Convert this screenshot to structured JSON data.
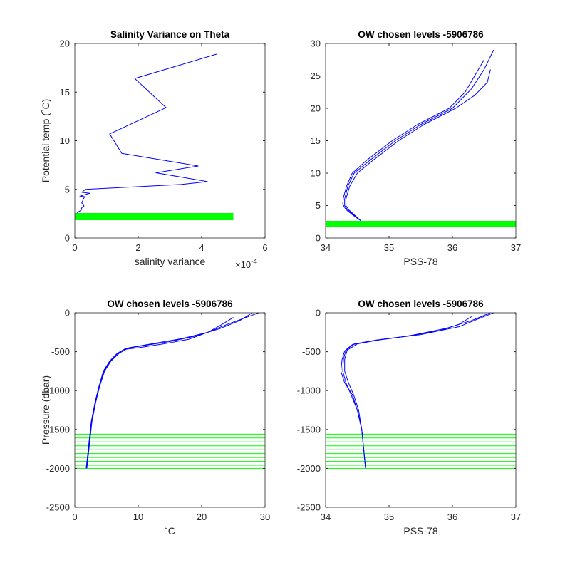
{
  "chart_data": [
    {
      "type": "line",
      "title": "Salinity Variance on Theta",
      "xlabel": "salinity variance",
      "ylabel": "Potential temp (˚C)",
      "x_exponent": {
        "base": "×10",
        "exponent": "-4"
      },
      "xlim": [
        0,
        6
      ],
      "xticks": [
        0,
        2,
        4,
        6
      ],
      "ylim": [
        0,
        20
      ],
      "yticks": [
        0,
        5,
        10,
        15,
        20
      ],
      "series": [
        {
          "color": "#0000ff",
          "x": [
            4.47,
            1.89,
            2.88,
            1.1,
            1.48,
            3.89,
            2.56,
            4.18,
            3.35,
            0.34,
            0.22,
            0.47,
            0.16,
            0.31,
            0.27,
            0.22,
            0.29,
            0.22,
            0.2,
            0.07
          ],
          "values": [
            18.9,
            16.4,
            13.4,
            10.7,
            8.7,
            7.4,
            6.7,
            5.8,
            5.5,
            5.0,
            4.7,
            4.6,
            4.3,
            4.25,
            4.0,
            3.6,
            3.3,
            3.1,
            2.85,
            2.6
          ]
        },
        {
          "color": "#00ff00",
          "linewidth": 10,
          "x": [
            0,
            5
          ],
          "values": [
            2.2,
            2.2
          ]
        }
      ]
    },
    {
      "type": "line",
      "title": "OW chosen levels -5906786",
      "xlabel": "PSS-78",
      "xlim": [
        34,
        37
      ],
      "xticks": [
        34,
        35,
        36,
        37
      ],
      "ylim": [
        0,
        30
      ],
      "yticks": [
        0,
        5,
        10,
        15,
        20,
        25,
        30
      ],
      "series": [
        {
          "color": "#0000ff",
          "x": [
            34.55,
            34.45,
            34.35,
            34.3,
            34.3,
            34.35,
            34.45,
            34.7,
            35.1,
            35.5,
            36.0,
            36.3,
            36.5,
            36.65
          ],
          "values": [
            2.7,
            3.5,
            4.3,
            5,
            6,
            8,
            10,
            12,
            15,
            17.5,
            20,
            23,
            26,
            29
          ]
        },
        {
          "color": "#0000ff",
          "x": [
            34.55,
            34.42,
            34.32,
            34.27,
            34.28,
            34.33,
            34.42,
            34.65,
            35.05,
            35.45,
            35.95,
            36.2,
            36.35,
            36.5
          ],
          "values": [
            2.7,
            3.6,
            4.4,
            5.2,
            6.2,
            8,
            10,
            12,
            15,
            17.5,
            20,
            22.5,
            25,
            27.5
          ]
        },
        {
          "color": "#0000ff",
          "x": [
            34.55,
            34.46,
            34.37,
            34.32,
            34.32,
            34.38,
            34.5,
            34.75,
            35.15,
            35.55,
            36.05,
            36.35,
            36.55,
            36.6
          ],
          "values": [
            2.7,
            3.5,
            4.3,
            5,
            6,
            8,
            10,
            12,
            15,
            17.5,
            20,
            22,
            24,
            26
          ]
        },
        {
          "color": "#00ff00",
          "linewidth": 8,
          "x": [
            34,
            37
          ],
          "values": [
            2.2,
            2.2
          ]
        }
      ]
    },
    {
      "type": "line",
      "title": "OW chosen levels -5906786",
      "xlabel": "˚C",
      "ylabel": "Pressure (dbar)",
      "xlim": [
        0,
        30
      ],
      "xticks": [
        0,
        10,
        20,
        30
      ],
      "ylim": [
        -2500,
        0
      ],
      "yticks": [
        -2500,
        -2000,
        -1500,
        -1000,
        -500,
        0
      ],
      "series": [
        {
          "color": "#00ff00",
          "x": [
            0,
            30
          ],
          "values": [
            -1560,
            -1560
          ]
        },
        {
          "color": "#00ff00",
          "x": [
            0,
            30
          ],
          "values": [
            -1610,
            -1610
          ]
        },
        {
          "color": "#00ff00",
          "x": [
            0,
            30
          ],
          "values": [
            -1660,
            -1660
          ]
        },
        {
          "color": "#00ff00",
          "x": [
            0,
            30
          ],
          "values": [
            -1710,
            -1710
          ]
        },
        {
          "color": "#00ff00",
          "x": [
            0,
            30
          ],
          "values": [
            -1760,
            -1760
          ]
        },
        {
          "color": "#00ff00",
          "x": [
            0,
            30
          ],
          "values": [
            -1810,
            -1810
          ]
        },
        {
          "color": "#00ff00",
          "x": [
            0,
            30
          ],
          "values": [
            -1860,
            -1860
          ]
        },
        {
          "color": "#00ff00",
          "x": [
            0,
            30
          ],
          "values": [
            -1910,
            -1910
          ]
        },
        {
          "color": "#00ff00",
          "x": [
            0,
            30
          ],
          "values": [
            -1960,
            -1960
          ]
        },
        {
          "color": "#00ff00",
          "x": [
            0,
            30
          ],
          "values": [
            -2000,
            -2000
          ]
        },
        {
          "color": "#0000ff",
          "x": [
            1.8,
            2.2,
            2.6,
            3.2,
            3.8,
            4.6,
            5.6,
            6.8,
            8,
            11,
            15,
            19,
            23,
            26,
            28
          ],
          "values": [
            -2000,
            -1700,
            -1400,
            -1150,
            -950,
            -750,
            -620,
            -520,
            -460,
            -420,
            -370,
            -300,
            -200,
            -100,
            0
          ]
        },
        {
          "color": "#0000ff",
          "x": [
            1.9,
            2.3,
            2.7,
            3.3,
            3.9,
            4.7,
            5.7,
            7,
            8.5,
            12,
            17,
            21,
            24,
            27,
            29
          ],
          "values": [
            -2000,
            -1700,
            -1400,
            -1150,
            -950,
            -750,
            -620,
            -520,
            -450,
            -400,
            -330,
            -250,
            -150,
            -60,
            0
          ]
        },
        {
          "color": "#0000ff",
          "x": [
            1.8,
            2.2,
            2.6,
            3.2,
            3.8,
            4.5,
            5.5,
            6.7,
            7.8,
            10,
            14,
            18,
            21,
            23,
            25
          ],
          "values": [
            -2000,
            -1700,
            -1400,
            -1150,
            -950,
            -750,
            -620,
            -520,
            -470,
            -450,
            -400,
            -340,
            -250,
            -160,
            -60
          ]
        }
      ]
    },
    {
      "type": "line",
      "title": "OW chosen levels -5906786",
      "xlabel": "PSS-78",
      "xlim": [
        34,
        37
      ],
      "xticks": [
        34,
        35,
        36,
        37
      ],
      "ylim": [
        -2500,
        0
      ],
      "yticks": [
        -2500,
        -2000,
        -1500,
        -1000,
        -500,
        0
      ],
      "series": [
        {
          "color": "#00ff00",
          "x": [
            34,
            37
          ],
          "values": [
            -1560,
            -1560
          ]
        },
        {
          "color": "#00ff00",
          "x": [
            34,
            37
          ],
          "values": [
            -1610,
            -1610
          ]
        },
        {
          "color": "#00ff00",
          "x": [
            34,
            37
          ],
          "values": [
            -1660,
            -1660
          ]
        },
        {
          "color": "#00ff00",
          "x": [
            34,
            37
          ],
          "values": [
            -1710,
            -1710
          ]
        },
        {
          "color": "#00ff00",
          "x": [
            34,
            37
          ],
          "values": [
            -1760,
            -1760
          ]
        },
        {
          "color": "#00ff00",
          "x": [
            34,
            37
          ],
          "values": [
            -1810,
            -1810
          ]
        },
        {
          "color": "#00ff00",
          "x": [
            34,
            37
          ],
          "values": [
            -1860,
            -1860
          ]
        },
        {
          "color": "#00ff00",
          "x": [
            34,
            37
          ],
          "values": [
            -1910,
            -1910
          ]
        },
        {
          "color": "#00ff00",
          "x": [
            34,
            37
          ],
          "values": [
            -1960,
            -1960
          ]
        },
        {
          "color": "#00ff00",
          "x": [
            34,
            37
          ],
          "values": [
            -2000,
            -2000
          ]
        },
        {
          "color": "#0000ff",
          "x": [
            34.63,
            34.6,
            34.57,
            34.5,
            34.4,
            34.32,
            34.27,
            34.28,
            34.32,
            34.45,
            34.8,
            35.3,
            35.9,
            36.3,
            36.6
          ],
          "values": [
            -2000,
            -1750,
            -1500,
            -1250,
            -1050,
            -900,
            -750,
            -600,
            -480,
            -400,
            -350,
            -300,
            -200,
            -100,
            0
          ]
        },
        {
          "color": "#0000ff",
          "x": [
            34.63,
            34.6,
            34.57,
            34.52,
            34.44,
            34.36,
            34.3,
            34.3,
            34.34,
            34.5,
            34.9,
            35.5,
            36.1,
            36.4,
            36.65
          ],
          "values": [
            -2000,
            -1750,
            -1500,
            -1250,
            -1050,
            -900,
            -750,
            -600,
            -480,
            -400,
            -340,
            -280,
            -180,
            -80,
            0
          ]
        },
        {
          "color": "#0000ff",
          "x": [
            34.63,
            34.6,
            34.57,
            34.5,
            34.42,
            34.3,
            34.24,
            34.26,
            34.3,
            34.42,
            34.75,
            35.2,
            35.8,
            36.1,
            36.3
          ],
          "values": [
            -2000,
            -1750,
            -1500,
            -1250,
            -1050,
            -900,
            -750,
            -600,
            -490,
            -410,
            -360,
            -310,
            -230,
            -150,
            -50
          ]
        }
      ]
    }
  ]
}
